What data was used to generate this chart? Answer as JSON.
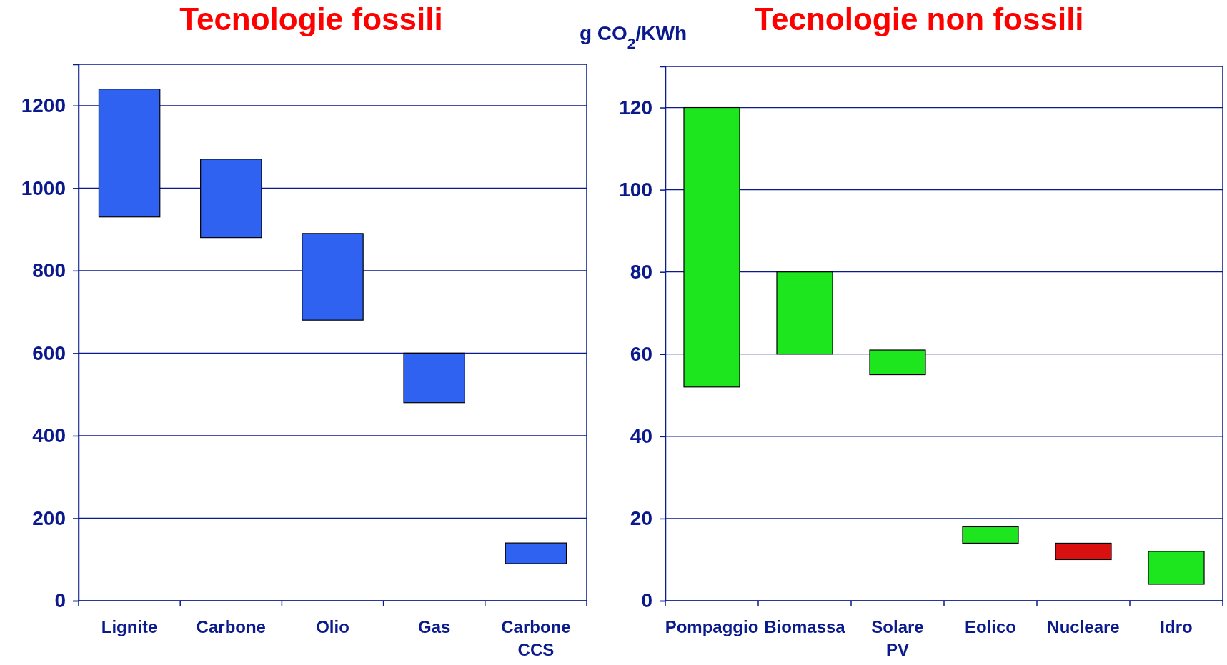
{
  "chart_data": [
    {
      "type": "bar",
      "title": "Tecnologie fossili",
      "categories": [
        "Lignite",
        "Carbone",
        "Olio",
        "Gas",
        "Carbone CCS"
      ],
      "base": [
        930,
        880,
        680,
        480,
        90
      ],
      "values": [
        310,
        190,
        210,
        120,
        50
      ],
      "color": "#2f62f0",
      "ylim": [
        0,
        1300
      ],
      "yticks": [
        0,
        200,
        400,
        600,
        800,
        1000,
        1200
      ],
      "grid": "y"
    },
    {
      "type": "bar",
      "title": "Tecnologie non fossili",
      "ylabel": "g CO$_{2}$/KWh",
      "categories": [
        "Pompaggio",
        "Biomassa",
        "Solare PV",
        "Eolico",
        "Nucleare",
        "Idro"
      ],
      "base": [
        52,
        60,
        55,
        14,
        10,
        4
      ],
      "values": [
        68,
        20,
        6,
        4,
        4,
        8
      ],
      "colors": [
        "#1ee61e",
        "#1ee61e",
        "#1ee61e",
        "#1ee61e",
        "#d81010",
        "#1ee61e"
      ],
      "ylim": [
        0,
        130
      ],
      "yticks": [
        0,
        20,
        40,
        60,
        80,
        100,
        120
      ],
      "grid": "y"
    }
  ]
}
